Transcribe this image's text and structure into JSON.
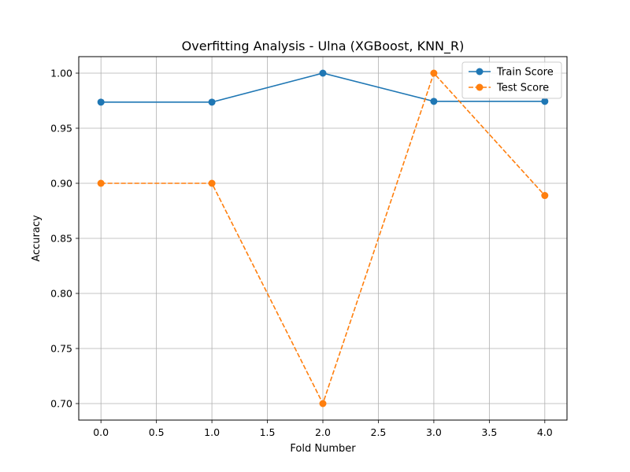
{
  "chart_data": {
    "type": "line",
    "title": "Overfitting Analysis - Ulna (XGBoost, KNN_R)",
    "xlabel": "Fold Number",
    "ylabel": "Accuracy",
    "x": [
      0,
      1,
      2,
      3,
      4
    ],
    "xlim": [
      -0.2,
      4.2
    ],
    "ylim": [
      0.685,
      1.015
    ],
    "xticks": [
      0.0,
      0.5,
      1.0,
      1.5,
      2.0,
      2.5,
      3.0,
      3.5,
      4.0
    ],
    "xtick_labels": [
      "0.0",
      "0.5",
      "1.0",
      "1.5",
      "2.0",
      "2.5",
      "3.0",
      "3.5",
      "4.0"
    ],
    "yticks": [
      0.7,
      0.75,
      0.8,
      0.85,
      0.9,
      0.95,
      1.0
    ],
    "ytick_labels": [
      "0.70",
      "0.75",
      "0.80",
      "0.85",
      "0.90",
      "0.95",
      "1.00"
    ],
    "grid": true,
    "legend_position": "top-right",
    "series": [
      {
        "name": "Train Score",
        "values": [
          0.9737,
          0.9737,
          1.0,
          0.9744,
          0.9744
        ],
        "color": "#1f77b4",
        "dash": "solid",
        "marker": "circle"
      },
      {
        "name": "Test Score",
        "values": [
          0.9,
          0.9,
          0.7,
          1.0,
          0.8889
        ],
        "color": "#ff7f0e",
        "dash": "dashed",
        "marker": "circle"
      }
    ]
  }
}
